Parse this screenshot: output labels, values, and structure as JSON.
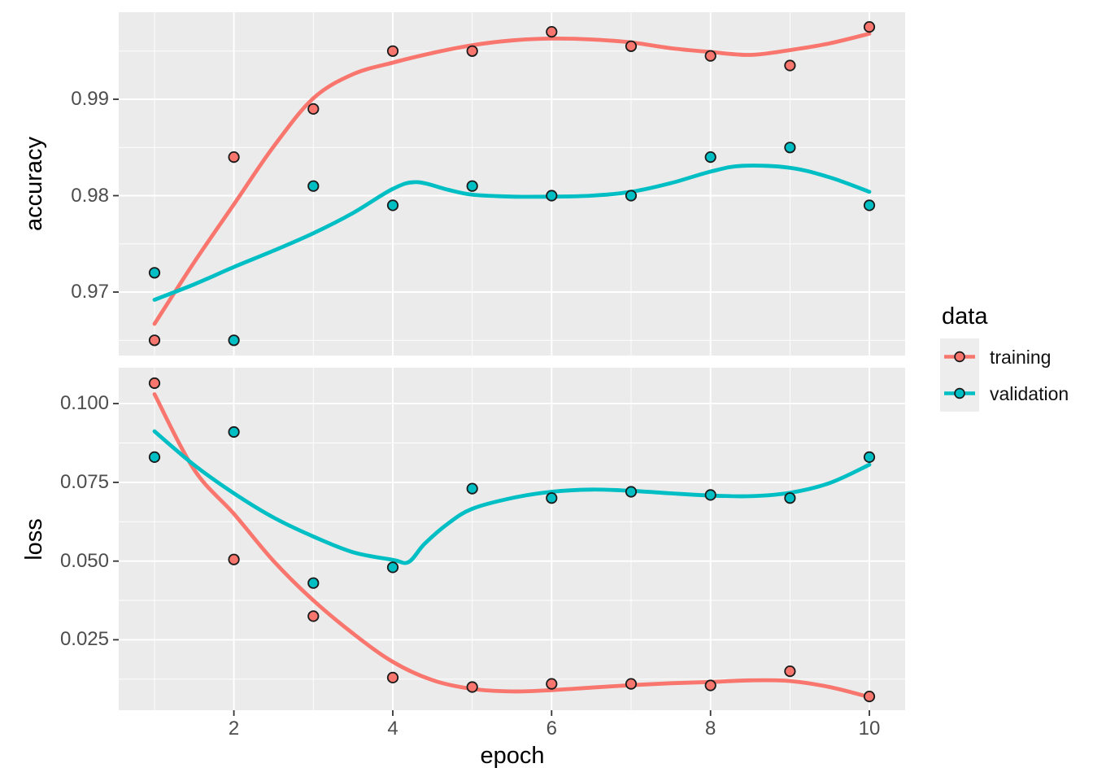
{
  "figure": {
    "background": "#FFFFFF",
    "panel_background": "#EBEBEB",
    "gridline_color": "#FFFFFF",
    "tick_mark_color": "#333333",
    "tick_label_color": "#4D4D4D",
    "axis_title_color": "#000000",
    "x_axis": {
      "title": "epoch",
      "tick_labels": [
        "2",
        "4",
        "6",
        "8",
        "10"
      ],
      "tick_values": [
        2,
        4,
        6,
        8,
        10
      ],
      "minor_tick_values": [
        1,
        3,
        5,
        7,
        9
      ],
      "range": [
        0.55,
        10.45
      ]
    },
    "legend": {
      "title": "data",
      "position": "right",
      "entries": [
        {
          "label": "training",
          "color": "#F8766D"
        },
        {
          "label": "validation",
          "color": "#00BFC4"
        }
      ]
    }
  },
  "chart_data": [
    {
      "type": "scatter",
      "panel": "accuracy",
      "y_axis_title": "accuracy",
      "x": [
        1,
        2,
        3,
        4,
        5,
        6,
        7,
        8,
        9,
        10
      ],
      "series": [
        {
          "name": "training",
          "color": "#F8766D",
          "values": [
            0.965,
            0.984,
            0.989,
            0.995,
            0.995,
            0.997,
            0.9955,
            0.9945,
            0.9935,
            0.9975
          ]
        },
        {
          "name": "validation",
          "color": "#00BFC4",
          "values": [
            0.972,
            0.965,
            0.981,
            0.979,
            0.981,
            0.98,
            0.98,
            0.984,
            0.985,
            0.979
          ]
        }
      ],
      "smooth": [
        {
          "name": "training",
          "color": "#F8766D",
          "points": [
            [
              1,
              0.9667
            ],
            [
              1.5,
              0.9731
            ],
            [
              2,
              0.9791
            ],
            [
              2.5,
              0.9851
            ],
            [
              3,
              0.9901
            ],
            [
              3.5,
              0.9926
            ],
            [
              4,
              0.9938
            ],
            [
              4.5,
              0.9948
            ],
            [
              5,
              0.9956
            ],
            [
              5.5,
              0.9961
            ],
            [
              6,
              0.9963
            ],
            [
              6.5,
              0.9962
            ],
            [
              7,
              0.9959
            ],
            [
              7.5,
              0.9953
            ],
            [
              8,
              0.9949
            ],
            [
              8.5,
              0.9946
            ],
            [
              9,
              0.9951
            ],
            [
              9.5,
              0.9958
            ],
            [
              10,
              0.9968
            ]
          ]
        },
        {
          "name": "validation",
          "color": "#00BFC4",
          "points": [
            [
              1,
              0.9692
            ],
            [
              1.5,
              0.9708
            ],
            [
              2,
              0.9726
            ],
            [
              2.5,
              0.9743
            ],
            [
              3,
              0.9761
            ],
            [
              3.5,
              0.9782
            ],
            [
              4,
              0.9807
            ],
            [
              4.3,
              0.9814
            ],
            [
              4.7,
              0.9806
            ],
            [
              5,
              0.9801
            ],
            [
              5.5,
              0.9799
            ],
            [
              6,
              0.9799
            ],
            [
              6.5,
              0.98
            ],
            [
              7,
              0.9804
            ],
            [
              7.5,
              0.9813
            ],
            [
              8,
              0.9825
            ],
            [
              8.4,
              0.9831
            ],
            [
              9,
              0.9829
            ],
            [
              9.5,
              0.9819
            ],
            [
              10,
              0.9804
            ]
          ]
        }
      ],
      "y_tick_labels": [
        "0.97",
        "0.98",
        "0.99"
      ],
      "y_breaks": [
        0.97,
        0.98,
        0.99
      ],
      "y_minor_breaks": [
        0.965,
        0.975,
        0.985,
        0.995
      ],
      "ylim": [
        0.96342,
        0.99903
      ],
      "grid": true
    },
    {
      "type": "scatter",
      "panel": "loss",
      "y_axis_title": "loss",
      "x": [
        1,
        2,
        3,
        4,
        5,
        6,
        7,
        8,
        9,
        10
      ],
      "series": [
        {
          "name": "training",
          "color": "#F8766D",
          "values": [
            0.1065,
            0.0505,
            0.0325,
            0.013,
            0.01,
            0.011,
            0.011,
            0.0105,
            0.015,
            0.007
          ]
        },
        {
          "name": "validation",
          "color": "#00BFC4",
          "values": [
            0.083,
            0.091,
            0.043,
            0.048,
            0.073,
            0.07,
            0.072,
            0.071,
            0.07,
            0.083
          ]
        }
      ],
      "smooth": [
        {
          "name": "training",
          "color": "#F8766D",
          "points": [
            [
              1,
              0.103
            ],
            [
              1.5,
              0.079
            ],
            [
              2,
              0.065
            ],
            [
              2.5,
              0.05
            ],
            [
              3,
              0.0375
            ],
            [
              3.5,
              0.027
            ],
            [
              4,
              0.018
            ],
            [
              4.5,
              0.0122
            ],
            [
              5,
              0.0094
            ],
            [
              5.5,
              0.0086
            ],
            [
              6,
              0.009
            ],
            [
              6.5,
              0.0098
            ],
            [
              7,
              0.0106
            ],
            [
              7.5,
              0.0112
            ],
            [
              8,
              0.0116
            ],
            [
              8.5,
              0.0121
            ],
            [
              9,
              0.0119
            ],
            [
              9.5,
              0.01
            ],
            [
              10,
              0.0068
            ]
          ]
        },
        {
          "name": "validation",
          "color": "#00BFC4",
          "points": [
            [
              1,
              0.0912
            ],
            [
              1.5,
              0.0805
            ],
            [
              2,
              0.0715
            ],
            [
              2.5,
              0.0638
            ],
            [
              3,
              0.0578
            ],
            [
              3.5,
              0.0528
            ],
            [
              4,
              0.0504
            ],
            [
              4.2,
              0.0497
            ],
            [
              4.4,
              0.0555
            ],
            [
              4.7,
              0.062
            ],
            [
              5,
              0.0666
            ],
            [
              5.5,
              0.07
            ],
            [
              6,
              0.072
            ],
            [
              6.5,
              0.0727
            ],
            [
              7,
              0.0723
            ],
            [
              7.5,
              0.0715
            ],
            [
              8,
              0.0708
            ],
            [
              8.5,
              0.0706
            ],
            [
              9,
              0.0717
            ],
            [
              9.5,
              0.0748
            ],
            [
              10,
              0.0806
            ]
          ]
        }
      ],
      "y_tick_labels": [
        "0.025",
        "0.050",
        "0.075",
        "0.100"
      ],
      "y_breaks": [
        0.025,
        0.05,
        0.075,
        0.1
      ],
      "y_minor_breaks": [
        0.0125,
        0.0375,
        0.0625,
        0.0875
      ],
      "ylim": [
        0.00263,
        0.1114
      ],
      "grid": true
    }
  ]
}
